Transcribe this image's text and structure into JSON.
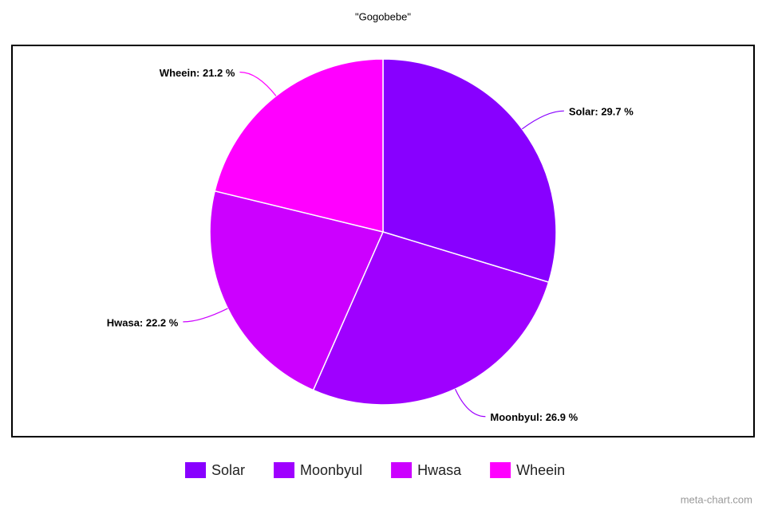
{
  "chart_data": {
    "type": "pie",
    "title": "\"Gogobebe\"",
    "categories": [
      "Solar",
      "Moonbyul",
      "Hwasa",
      "Wheein"
    ],
    "values": [
      29.7,
      26.9,
      22.2,
      21.2
    ],
    "value_labels": [
      "Solar: 29.7 %",
      "Moonbyul: 26.9 %",
      "Hwasa: 22.2 %",
      "Wheein: 21.2 %"
    ],
    "colors": [
      "#8800ff",
      "#9f00ff",
      "#cc00ff",
      "#ff00ff"
    ],
    "legend": "bottom",
    "watermark": "meta-chart.com"
  }
}
